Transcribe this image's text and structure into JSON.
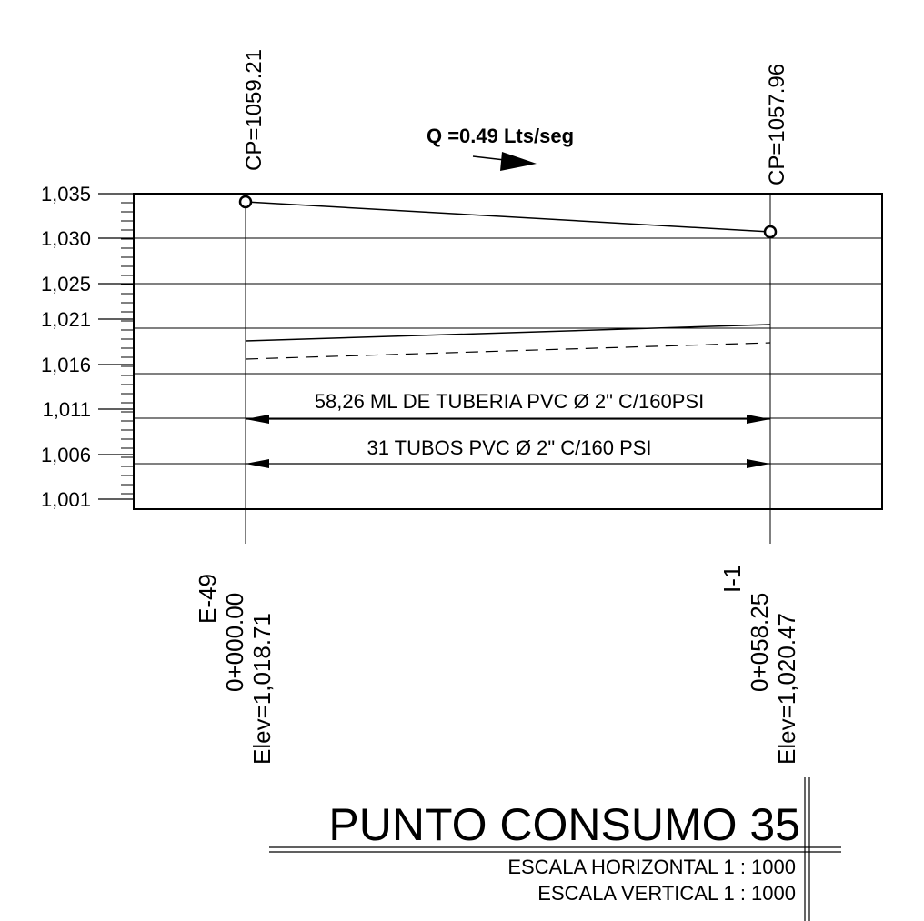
{
  "flow": {
    "label": "Q =0.49 Lts/seg"
  },
  "profile": {
    "y_ticks": [
      "1,035",
      "1,030",
      "1,025",
      "1,021",
      "1,016",
      "1,011",
      "1,006",
      "1,001"
    ],
    "y_range": [
      1001,
      1035
    ],
    "stations": [
      {
        "cp_label": "CP=1059.21",
        "id": "E-49",
        "station": "0+000.00",
        "elev": "Elev=1,018.71",
        "chainage_m": 0,
        "cp_value": 1059.21,
        "elev_value": 1018.71
      },
      {
        "cp_label": "CP=1057.96",
        "id": "I-1",
        "station": "0+058.25",
        "elev": "Elev=1,020.47",
        "chainage_m": 58.25,
        "cp_value": 1057.96,
        "elev_value": 1020.47
      }
    ],
    "dimensions": [
      {
        "label": "58,26 ML DE TUBERIA PVC Ø  2\" C/160PSI"
      },
      {
        "label": "31 TUBOS PVC Ø 2\" C/160 PSI"
      }
    ]
  },
  "title_block": {
    "title": "PUNTO CONSUMO 35",
    "scale_h": "ESCALA HORIZONTAL 1 : 1000",
    "scale_v": "ESCALA VERTICAL 1 : 1000"
  }
}
